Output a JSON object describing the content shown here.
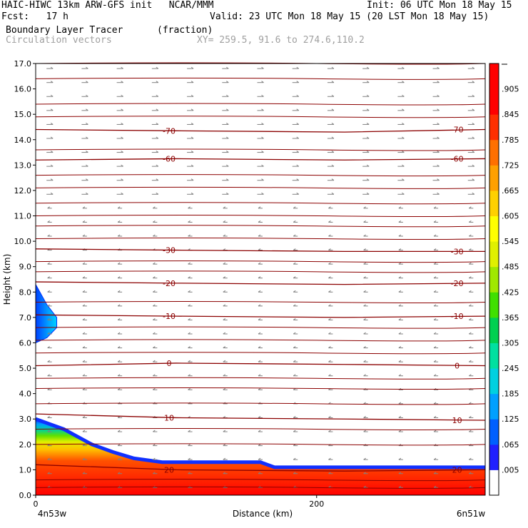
{
  "header": {
    "line1_left": "HAIC-HIWC 13km ARW-GFS init   NCAR/MMM",
    "line1_right": "Init: 06 UTC Mon 18 May 15",
    "line2_left": "Fcst:   17 h",
    "line2_right": "Valid: 23 UTC Mon 18 May 15 (20 LST Mon 18 May 15)",
    "line3_left": "Boundary Layer Tracer",
    "line3_mid": "(fraction)",
    "line4_left": "Circulation vectors",
    "line4_mid": "XY= 259.5, 91.6 to 274.6,110.2"
  },
  "chart_data": {
    "type": "heatmap",
    "xlabel": "Distance (km)",
    "ylabel": "Height (km)",
    "xlim": [
      0,
      320
    ],
    "ylim": [
      0,
      17
    ],
    "x_ticks": [
      {
        "value": 0,
        "label": "0"
      },
      {
        "value": 200,
        "label": "200"
      }
    ],
    "x_end_labels": {
      "left": "4n53w",
      "right": "6n51w"
    },
    "y_ticks": [
      "0.0",
      "1.0",
      "2.0",
      "3.0",
      "4.0",
      "5.0",
      "6.0",
      "7.0",
      "8.0",
      "9.0",
      "10.0",
      "11.0",
      "12.0",
      "13.0",
      "14.0",
      "15.0",
      "16.0",
      "17.0"
    ],
    "colorbar": {
      "labels": [
        ".005",
        ".065",
        ".125",
        ".185",
        ".245",
        ".305",
        ".365",
        ".425",
        ".485",
        ".545",
        ".605",
        ".665",
        ".725",
        ".785",
        ".845",
        ".905"
      ],
      "colors": [
        "#ffffff",
        "#2020ff",
        "#0060ff",
        "#00a0ff",
        "#00d0e0",
        "#00e0a0",
        "#00d050",
        "#40e000",
        "#a0e800",
        "#e0f000",
        "#ffff00",
        "#ffd000",
        "#ffa000",
        "#ff7000",
        "#ff3000",
        "#ff0000",
        "#ff0000"
      ]
    },
    "tracer_profile": {
      "description_x": [
        0,
        10,
        20,
        30,
        40,
        55,
        70,
        90,
        130,
        160,
        170,
        320
      ],
      "top_height": [
        3.0,
        2.8,
        2.6,
        2.3,
        2.0,
        1.7,
        1.45,
        1.3,
        1.3,
        1.3,
        1.1,
        1.1
      ],
      "blob": {
        "x": [
          0,
          0,
          8,
          15,
          15,
          8,
          0
        ],
        "y": [
          6.0,
          8.3,
          7.5,
          7.0,
          6.6,
          6.2,
          6.0
        ]
      }
    },
    "temperature_contours": [
      {
        "value": 20,
        "label": "20",
        "heights": [
          1.2,
          1.0,
          0.95,
          1.0
        ]
      },
      {
        "value": 10,
        "label": "10",
        "heights": [
          3.2,
          3.05,
          3.0,
          2.95
        ]
      },
      {
        "value": 0,
        "label": "0",
        "heights": [
          5.1,
          5.2,
          5.15,
          5.1
        ]
      },
      {
        "value": -10,
        "label": "-10",
        "heights": [
          7.1,
          7.05,
          7.0,
          7.05
        ]
      },
      {
        "value": -20,
        "label": "-20",
        "heights": [
          8.4,
          8.35,
          8.3,
          8.35
        ]
      },
      {
        "value": -30,
        "label": "-30",
        "heights": [
          9.7,
          9.65,
          9.6,
          9.6
        ]
      },
      {
        "value": -60,
        "label": "-60",
        "heights": [
          13.2,
          13.25,
          13.2,
          13.25
        ]
      },
      {
        "value": -70,
        "label": "-70",
        "heights": [
          14.4,
          14.35,
          14.3,
          14.4
        ]
      }
    ],
    "unlabeled_contour_heights": [
      0.3,
      0.6,
      2.0,
      2.6,
      3.6,
      4.2,
      4.6,
      5.6,
      6.1,
      6.6,
      7.6,
      8.8,
      9.2,
      10.1,
      10.6,
      11.0,
      11.5,
      12.1,
      12.6,
      13.6,
      14.9,
      15.4,
      16.4,
      17.0
    ]
  }
}
